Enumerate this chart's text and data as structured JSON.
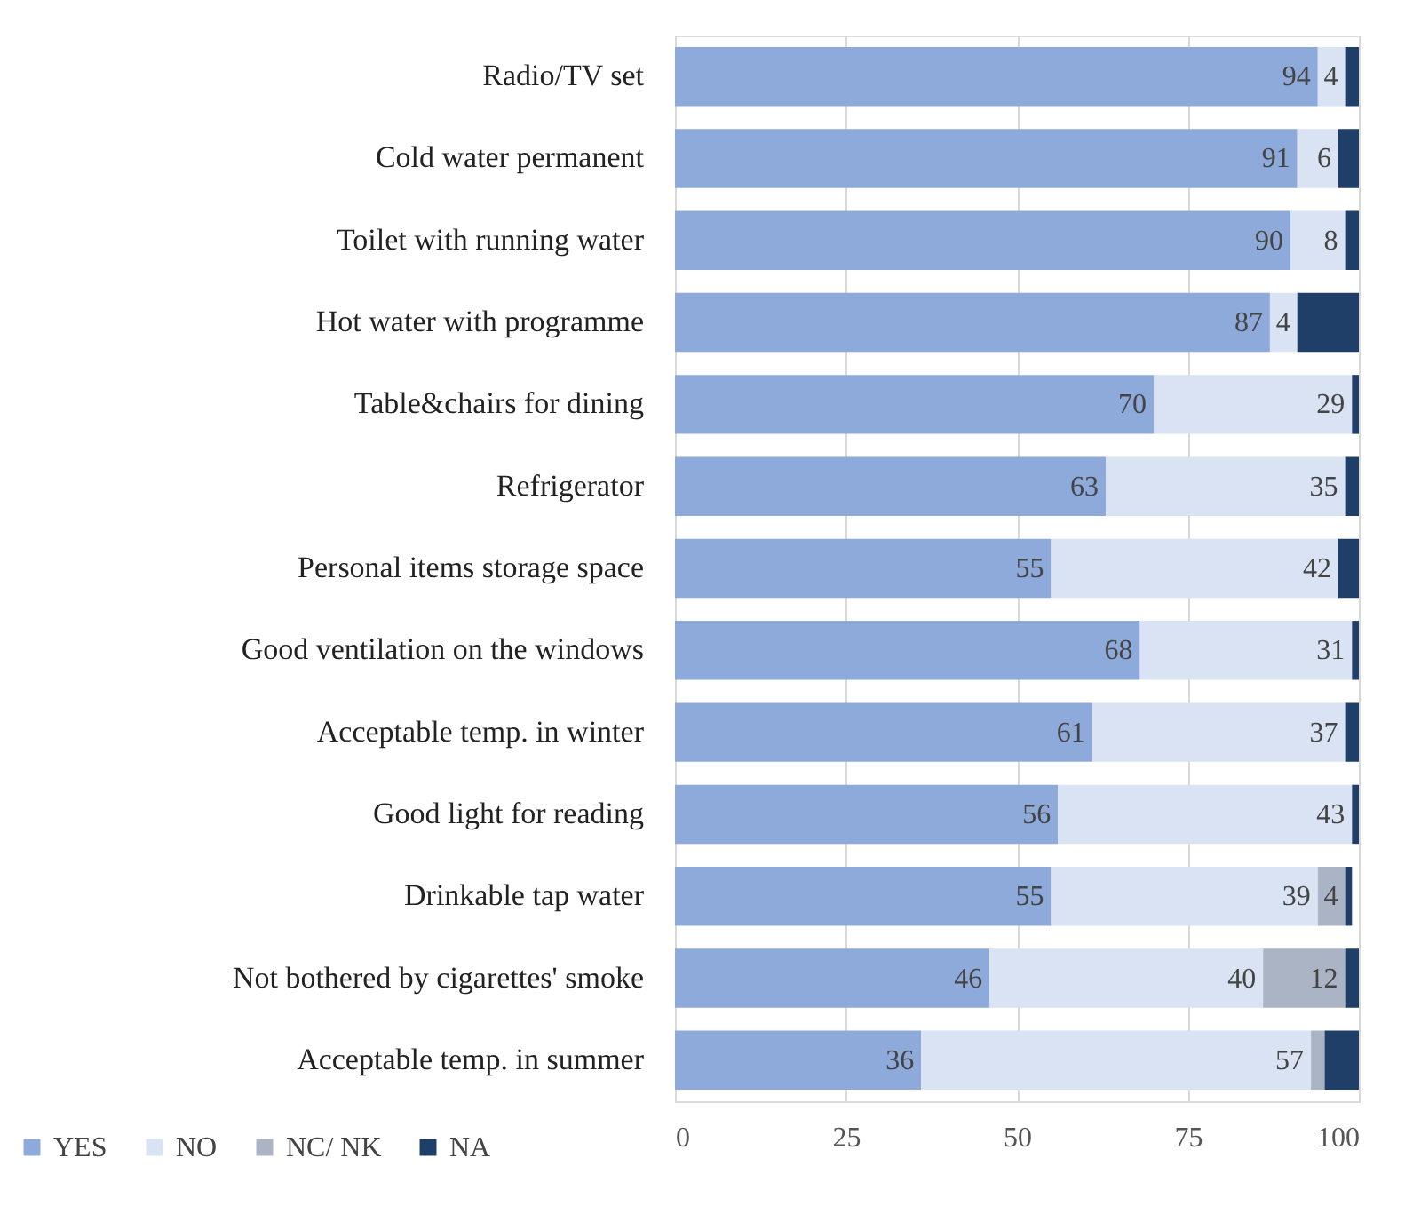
{
  "chart_data": {
    "type": "bar",
    "orientation": "horizontal",
    "stacked": true,
    "categories": [
      "Radio/TV set",
      "Cold water permanent",
      "Toilet with running water",
      "Hot water with programme",
      "Table&chairs for dining",
      "Refrigerator",
      "Personal items storage space",
      "Good ventilation on the windows",
      "Acceptable temp. in winter",
      "Good light for reading",
      "Drinkable tap water",
      "Not bothered by cigarettes' smoke",
      "Acceptable temp. in summer"
    ],
    "series": [
      {
        "name": "YES",
        "color": "#8eaadb",
        "values": [
          94,
          91,
          90,
          87,
          70,
          63,
          55,
          68,
          61,
          56,
          55,
          46,
          36
        ],
        "value_labels": [
          "94",
          "91",
          "90",
          "87",
          "70",
          "63",
          "55",
          "68",
          "61",
          "56",
          "55",
          "46",
          "36"
        ]
      },
      {
        "name": "NO",
        "color": "#dae3f3",
        "values": [
          4,
          6,
          8,
          4,
          29,
          35,
          42,
          31,
          37,
          43,
          39,
          40,
          57
        ],
        "value_labels": [
          "4",
          "6",
          "8",
          "4",
          "29",
          "35",
          "42",
          "31",
          "37",
          "43",
          "39",
          "40",
          "57"
        ]
      },
      {
        "name": "NC/ NK",
        "color": "#aab4c4",
        "values": [
          null,
          null,
          null,
          null,
          null,
          null,
          null,
          null,
          null,
          null,
          4,
          12,
          2
        ],
        "value_labels": [
          null,
          null,
          null,
          null,
          null,
          null,
          null,
          null,
          null,
          null,
          "4",
          "12",
          null
        ]
      },
      {
        "name": "NA",
        "color": "#1f3f68",
        "values": [
          2,
          3,
          2,
          9,
          1,
          2,
          3,
          1,
          2,
          1,
          1,
          2,
          5
        ]
      }
    ],
    "xlim": [
      0,
      100
    ],
    "xticks": [
      0,
      25,
      50,
      75,
      100
    ],
    "grid": "x",
    "legend": "bottom left"
  }
}
